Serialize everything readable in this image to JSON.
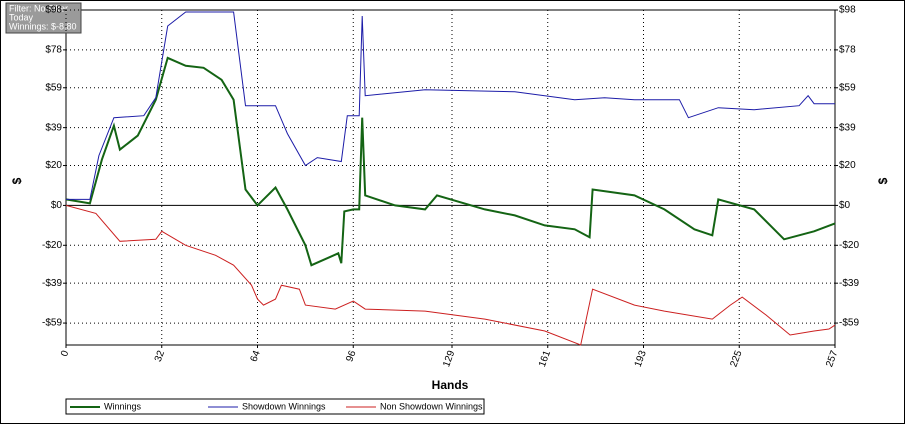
{
  "chart_data": {
    "type": "line",
    "annotations": [
      "Filter: No Filter",
      "Today",
      "Winnings: $-8.80"
    ],
    "x_label": "Hands",
    "y_label": "$",
    "y2_label": "$",
    "xlim": [
      0,
      257
    ],
    "xticks": [
      0,
      32,
      64,
      96,
      129,
      161,
      193,
      225,
      257
    ],
    "ylim": [
      -70,
      98
    ],
    "yticks": [
      {
        "value": 98,
        "label": "$98"
      },
      {
        "value": 78,
        "label": "$78"
      },
      {
        "value": 59,
        "label": "$59"
      },
      {
        "value": 39,
        "label": "$39"
      },
      {
        "value": 20,
        "label": "$20"
      },
      {
        "value": 0,
        "label": "$0"
      },
      {
        "value": -20,
        "label": "-$20"
      },
      {
        "value": -39,
        "label": "-$39"
      },
      {
        "value": -59,
        "label": "-$59"
      }
    ],
    "y2lim": [
      -70,
      98
    ],
    "y2ticks": [
      {
        "value": 98,
        "label": "$98"
      },
      {
        "value": 78,
        "label": "$78"
      },
      {
        "value": 59,
        "label": "$59"
      },
      {
        "value": 39,
        "label": "$39"
      },
      {
        "value": 20,
        "label": "$20"
      },
      {
        "value": 0,
        "label": "$0"
      },
      {
        "value": -20,
        "label": "-$20"
      },
      {
        "value": -39,
        "label": "-$39"
      },
      {
        "value": -59,
        "label": "-$59"
      }
    ],
    "grid": true,
    "legend": "bottom",
    "series": [
      {
        "name": "Winnings",
        "color": "#146414",
        "x": [
          0,
          8,
          12,
          16,
          18,
          24,
          30,
          34,
          40,
          46,
          52,
          56,
          60,
          64,
          70,
          74,
          80,
          82,
          88,
          91,
          92,
          93,
          96,
          98,
          99,
          100,
          110,
          120,
          124,
          140,
          150,
          160,
          170,
          175,
          176,
          190,
          200,
          210,
          216,
          218,
          230,
          240,
          250,
          257
        ],
        "values": [
          3,
          1,
          23,
          40,
          28,
          35,
          53,
          74,
          70,
          69,
          63,
          53,
          8,
          0,
          9,
          -2,
          -20,
          -30,
          -26,
          -24,
          -29,
          -3,
          -2,
          -2,
          44,
          5,
          0,
          -2,
          5,
          -2,
          -5,
          -10,
          -12,
          -16,
          8,
          5,
          -2,
          -12,
          -15,
          3,
          -2,
          -17,
          -13,
          -9
        ]
      },
      {
        "name": "Showdown Winnings",
        "color": "#1c1ca8",
        "x": [
          0,
          8,
          11,
          16,
          26,
          30,
          34,
          40,
          56,
          60,
          70,
          74,
          80,
          84,
          92,
          94,
          98,
          99,
          100,
          120,
          150,
          170,
          180,
          190,
          205,
          208,
          218,
          230,
          245,
          248,
          250,
          257
        ],
        "values": [
          3,
          3,
          25,
          44,
          45,
          54,
          90,
          97,
          97,
          50,
          50,
          36,
          20,
          24,
          22,
          45,
          45,
          95,
          55,
          58,
          57,
          53,
          54,
          53,
          53,
          44,
          49,
          48,
          50,
          55,
          51,
          51
        ]
      },
      {
        "name": "Non Showdown Winnings",
        "color": "#cc2020",
        "x": [
          0,
          10,
          18,
          30,
          32,
          40,
          50,
          56,
          62,
          64,
          66,
          70,
          72,
          78,
          80,
          90,
          96,
          100,
          120,
          140,
          160,
          172,
          176,
          190,
          200,
          216,
          222,
          226,
          234,
          242,
          250,
          255,
          257
        ],
        "values": [
          0,
          -4,
          -18,
          -17,
          -13,
          -20,
          -25,
          -30,
          -40,
          -47,
          -50,
          -47,
          -40,
          -42,
          -50,
          -52,
          -48,
          -52,
          -53,
          -57,
          -63,
          -70,
          -42,
          -50,
          -53,
          -57,
          -50,
          -46,
          -55,
          -65,
          -63,
          -62,
          -60
        ]
      }
    ]
  }
}
